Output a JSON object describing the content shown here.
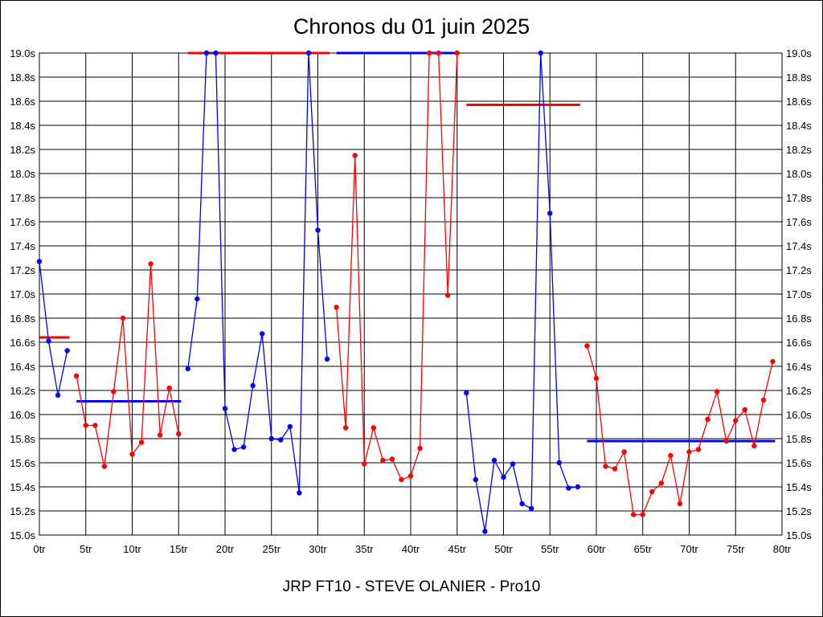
{
  "chart_data": {
    "type": "line",
    "title": "Chronos du 01 juin 2025",
    "footer": "JRP FT10 - STEVE OLANIER - Pro10",
    "xlim": [
      0,
      80
    ],
    "ylim": [
      15.0,
      19.0
    ],
    "x_ticks": [
      {
        "v": 0,
        "label": "0tr"
      },
      {
        "v": 5,
        "label": "5tr"
      },
      {
        "v": 10,
        "label": "10tr"
      },
      {
        "v": 15,
        "label": "15tr"
      },
      {
        "v": 20,
        "label": "20tr"
      },
      {
        "v": 25,
        "label": "25tr"
      },
      {
        "v": 30,
        "label": "30tr"
      },
      {
        "v": 35,
        "label": "35tr"
      },
      {
        "v": 40,
        "label": "40tr"
      },
      {
        "v": 45,
        "label": "45tr"
      },
      {
        "v": 50,
        "label": "50tr"
      },
      {
        "v": 55,
        "label": "55tr"
      },
      {
        "v": 60,
        "label": "60tr"
      },
      {
        "v": 65,
        "label": "65tr"
      },
      {
        "v": 70,
        "label": "70tr"
      },
      {
        "v": 75,
        "label": "75tr"
      },
      {
        "v": 80,
        "label": "80tr"
      }
    ],
    "y_ticks": [
      {
        "v": 15.0,
        "label": "15.0s"
      },
      {
        "v": 15.2,
        "label": "15.2s"
      },
      {
        "v": 15.4,
        "label": "15.4s"
      },
      {
        "v": 15.6,
        "label": "15.6s"
      },
      {
        "v": 15.8,
        "label": "15.8s"
      },
      {
        "v": 16.0,
        "label": "16.0s"
      },
      {
        "v": 16.2,
        "label": "16.2s"
      },
      {
        "v": 16.4,
        "label": "16.4s"
      },
      {
        "v": 16.6,
        "label": "16.6s"
      },
      {
        "v": 16.8,
        "label": "16.8s"
      },
      {
        "v": 17.0,
        "label": "17.0s"
      },
      {
        "v": 17.2,
        "label": "17.2s"
      },
      {
        "v": 17.4,
        "label": "17.4s"
      },
      {
        "v": 17.6,
        "label": "17.6s"
      },
      {
        "v": 17.8,
        "label": "17.8s"
      },
      {
        "v": 18.0,
        "label": "18.0s"
      },
      {
        "v": 18.2,
        "label": "18.2s"
      },
      {
        "v": 18.4,
        "label": "18.4s"
      },
      {
        "v": 18.6,
        "label": "18.6s"
      },
      {
        "v": 18.8,
        "label": "18.8s"
      },
      {
        "v": 19.0,
        "label": "19.0s"
      }
    ],
    "grid": true,
    "series": [
      {
        "color": "#0000ff",
        "x": [
          0,
          1,
          2,
          3
        ],
        "y": [
          17.27,
          16.61,
          16.16,
          16.53
        ],
        "avg": {
          "x": [
            0,
            3
          ],
          "y": 16.64,
          "color": "#ff0000"
        }
      },
      {
        "color": "#ff0000",
        "x": [
          4,
          5,
          6,
          7,
          8,
          9,
          10,
          11,
          12,
          13,
          14,
          15
        ],
        "y": [
          16.32,
          15.91,
          15.91,
          15.57,
          16.19,
          16.8,
          15.67,
          15.77,
          17.25,
          15.83,
          16.22,
          15.84
        ],
        "avg": {
          "x": [
            4,
            15
          ],
          "y": 16.11,
          "color": "#0000ff"
        }
      },
      {
        "color": "#0000ff",
        "x": [
          16,
          17,
          18,
          19,
          20,
          21,
          22,
          23,
          24,
          25,
          26,
          27,
          28,
          29,
          30,
          31
        ],
        "y": [
          16.38,
          16.96,
          19.0,
          19.0,
          16.05,
          15.71,
          15.73,
          16.24,
          16.67,
          15.8,
          15.79,
          15.9,
          15.35,
          19.0,
          17.53,
          16.46
        ],
        "avg": {
          "x": [
            16,
            31
          ],
          "y": 19.0,
          "color": "#ff0000"
        }
      },
      {
        "color": "#ff0000",
        "x": [
          32,
          33,
          34,
          35,
          36,
          37,
          38,
          39,
          40,
          41,
          42,
          43,
          44,
          45
        ],
        "y": [
          16.89,
          15.89,
          18.15,
          15.59,
          15.89,
          15.62,
          15.63,
          15.46,
          15.49,
          15.72,
          19.0,
          19.0,
          16.99,
          19.0
        ],
        "avg": {
          "x": [
            32,
            45
          ],
          "y": 19.0,
          "color": "#0000ff"
        }
      },
      {
        "color": "#0000ff",
        "x": [
          46,
          47,
          48,
          49,
          50,
          51,
          52,
          53,
          54,
          55,
          56,
          57,
          58
        ],
        "y": [
          16.18,
          15.46,
          15.03,
          15.62,
          15.48,
          15.59,
          15.26,
          15.22,
          19.0,
          17.67,
          15.6,
          15.39,
          15.4
        ],
        "avg": {
          "x": [
            46,
            58
          ],
          "y": 18.57,
          "color": "#ff0000"
        }
      },
      {
        "color": "#ff0000",
        "x": [
          59,
          60,
          61,
          62,
          63,
          64,
          65,
          66,
          67,
          68,
          69,
          70,
          71,
          72,
          73,
          74,
          75,
          76,
          77,
          78,
          79
        ],
        "y": [
          16.57,
          16.3,
          15.57,
          15.55,
          15.69,
          15.17,
          15.17,
          15.36,
          15.43,
          15.66,
          15.26,
          15.69,
          15.71,
          15.96,
          16.19,
          15.78,
          15.95,
          16.04,
          15.74,
          16.12,
          16.44
        ],
        "avg": {
          "x": [
            59,
            79
          ],
          "y": 15.78,
          "color": "#0000ff"
        }
      }
    ]
  }
}
